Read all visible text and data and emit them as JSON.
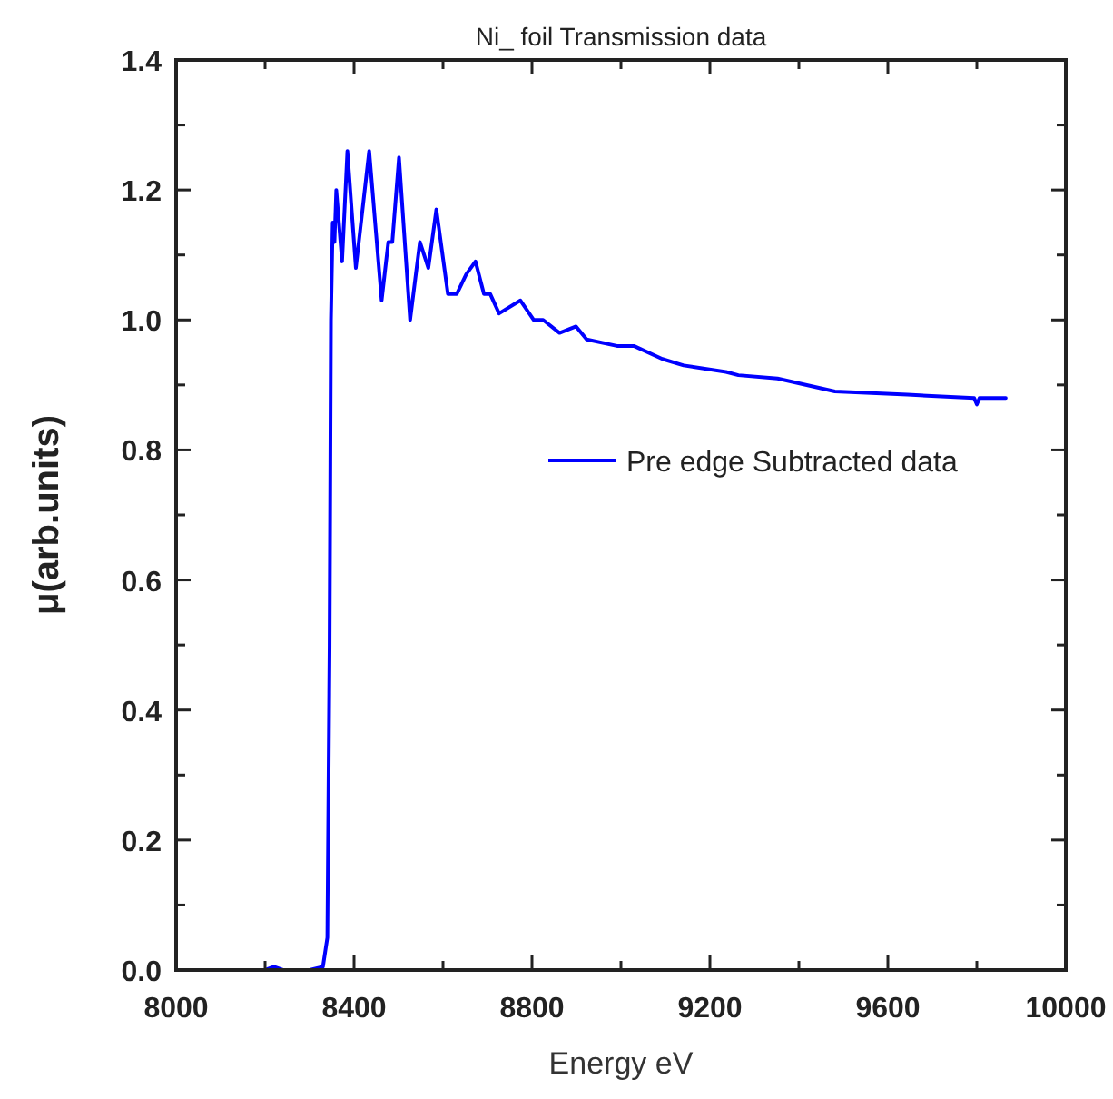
{
  "chart_data": {
    "type": "line",
    "title": "Ni_ foil Transmission data",
    "xlabel": "Energy eV",
    "ylabel": "μ(arb.units)",
    "xlim": [
      8000,
      10000
    ],
    "xticks": [
      8000,
      {
        "value": 8200,
        "label": null
      },
      8400,
      {
        "value": 8600,
        "label": null
      },
      8800,
      {
        "value": 9000,
        "label": null
      },
      9200,
      {
        "value": 9400,
        "label": null
      },
      9600,
      {
        "value": 9800,
        "label": null
      },
      10000
    ],
    "ylim": [
      0,
      1.4
    ],
    "yticks": [
      {
        "value": 0,
        "label": "0.0"
      },
      {
        "value": 0.1,
        "label": null
      },
      0.2,
      {
        "value": 0.3,
        "label": null
      },
      0.4,
      {
        "value": 0.5,
        "label": null
      },
      0.6,
      {
        "value": 0.7,
        "label": null
      },
      0.8,
      {
        "value": 0.9,
        "label": null
      },
      {
        "value": 1.0,
        "label": "1.0"
      },
      {
        "value": 1.1,
        "label": null
      },
      1.2,
      {
        "value": 1.3,
        "label": null
      },
      1.4
    ],
    "legend": "right",
    "grid": false,
    "series": [
      {
        "name": "Pre edge Subtracted data",
        "color": "#0000ff",
        "x": [
          8200,
          8220,
          8240,
          8300,
          8330,
          8340,
          8345,
          8348,
          8352,
          8356,
          8360,
          8373,
          8385,
          8404,
          8434,
          8462,
          8477,
          8486,
          8501,
          8526,
          8548,
          8567,
          8585,
          8611,
          8631,
          8652,
          8673,
          8692,
          8706,
          8726,
          8774,
          8804,
          8825,
          8862,
          8899,
          8923,
          8991,
          9029,
          9093,
          9141,
          9236,
          9264,
          9352,
          9481,
          9644,
          9794,
          9800,
          9806,
          9865
        ],
        "values": [
          0.0,
          0.005,
          0.0,
          0.0,
          0.005,
          0.05,
          0.5,
          1.0,
          1.15,
          1.12,
          1.2,
          1.09,
          1.26,
          1.08,
          1.26,
          1.03,
          1.12,
          1.12,
          1.25,
          1.0,
          1.12,
          1.08,
          1.17,
          1.04,
          1.04,
          1.07,
          1.09,
          1.04,
          1.04,
          1.01,
          1.03,
          1.0,
          1.0,
          0.98,
          0.99,
          0.97,
          0.96,
          0.96,
          0.94,
          0.93,
          0.92,
          0.915,
          0.91,
          0.89,
          0.885,
          0.88,
          0.87,
          0.88,
          0.88
        ]
      }
    ]
  }
}
